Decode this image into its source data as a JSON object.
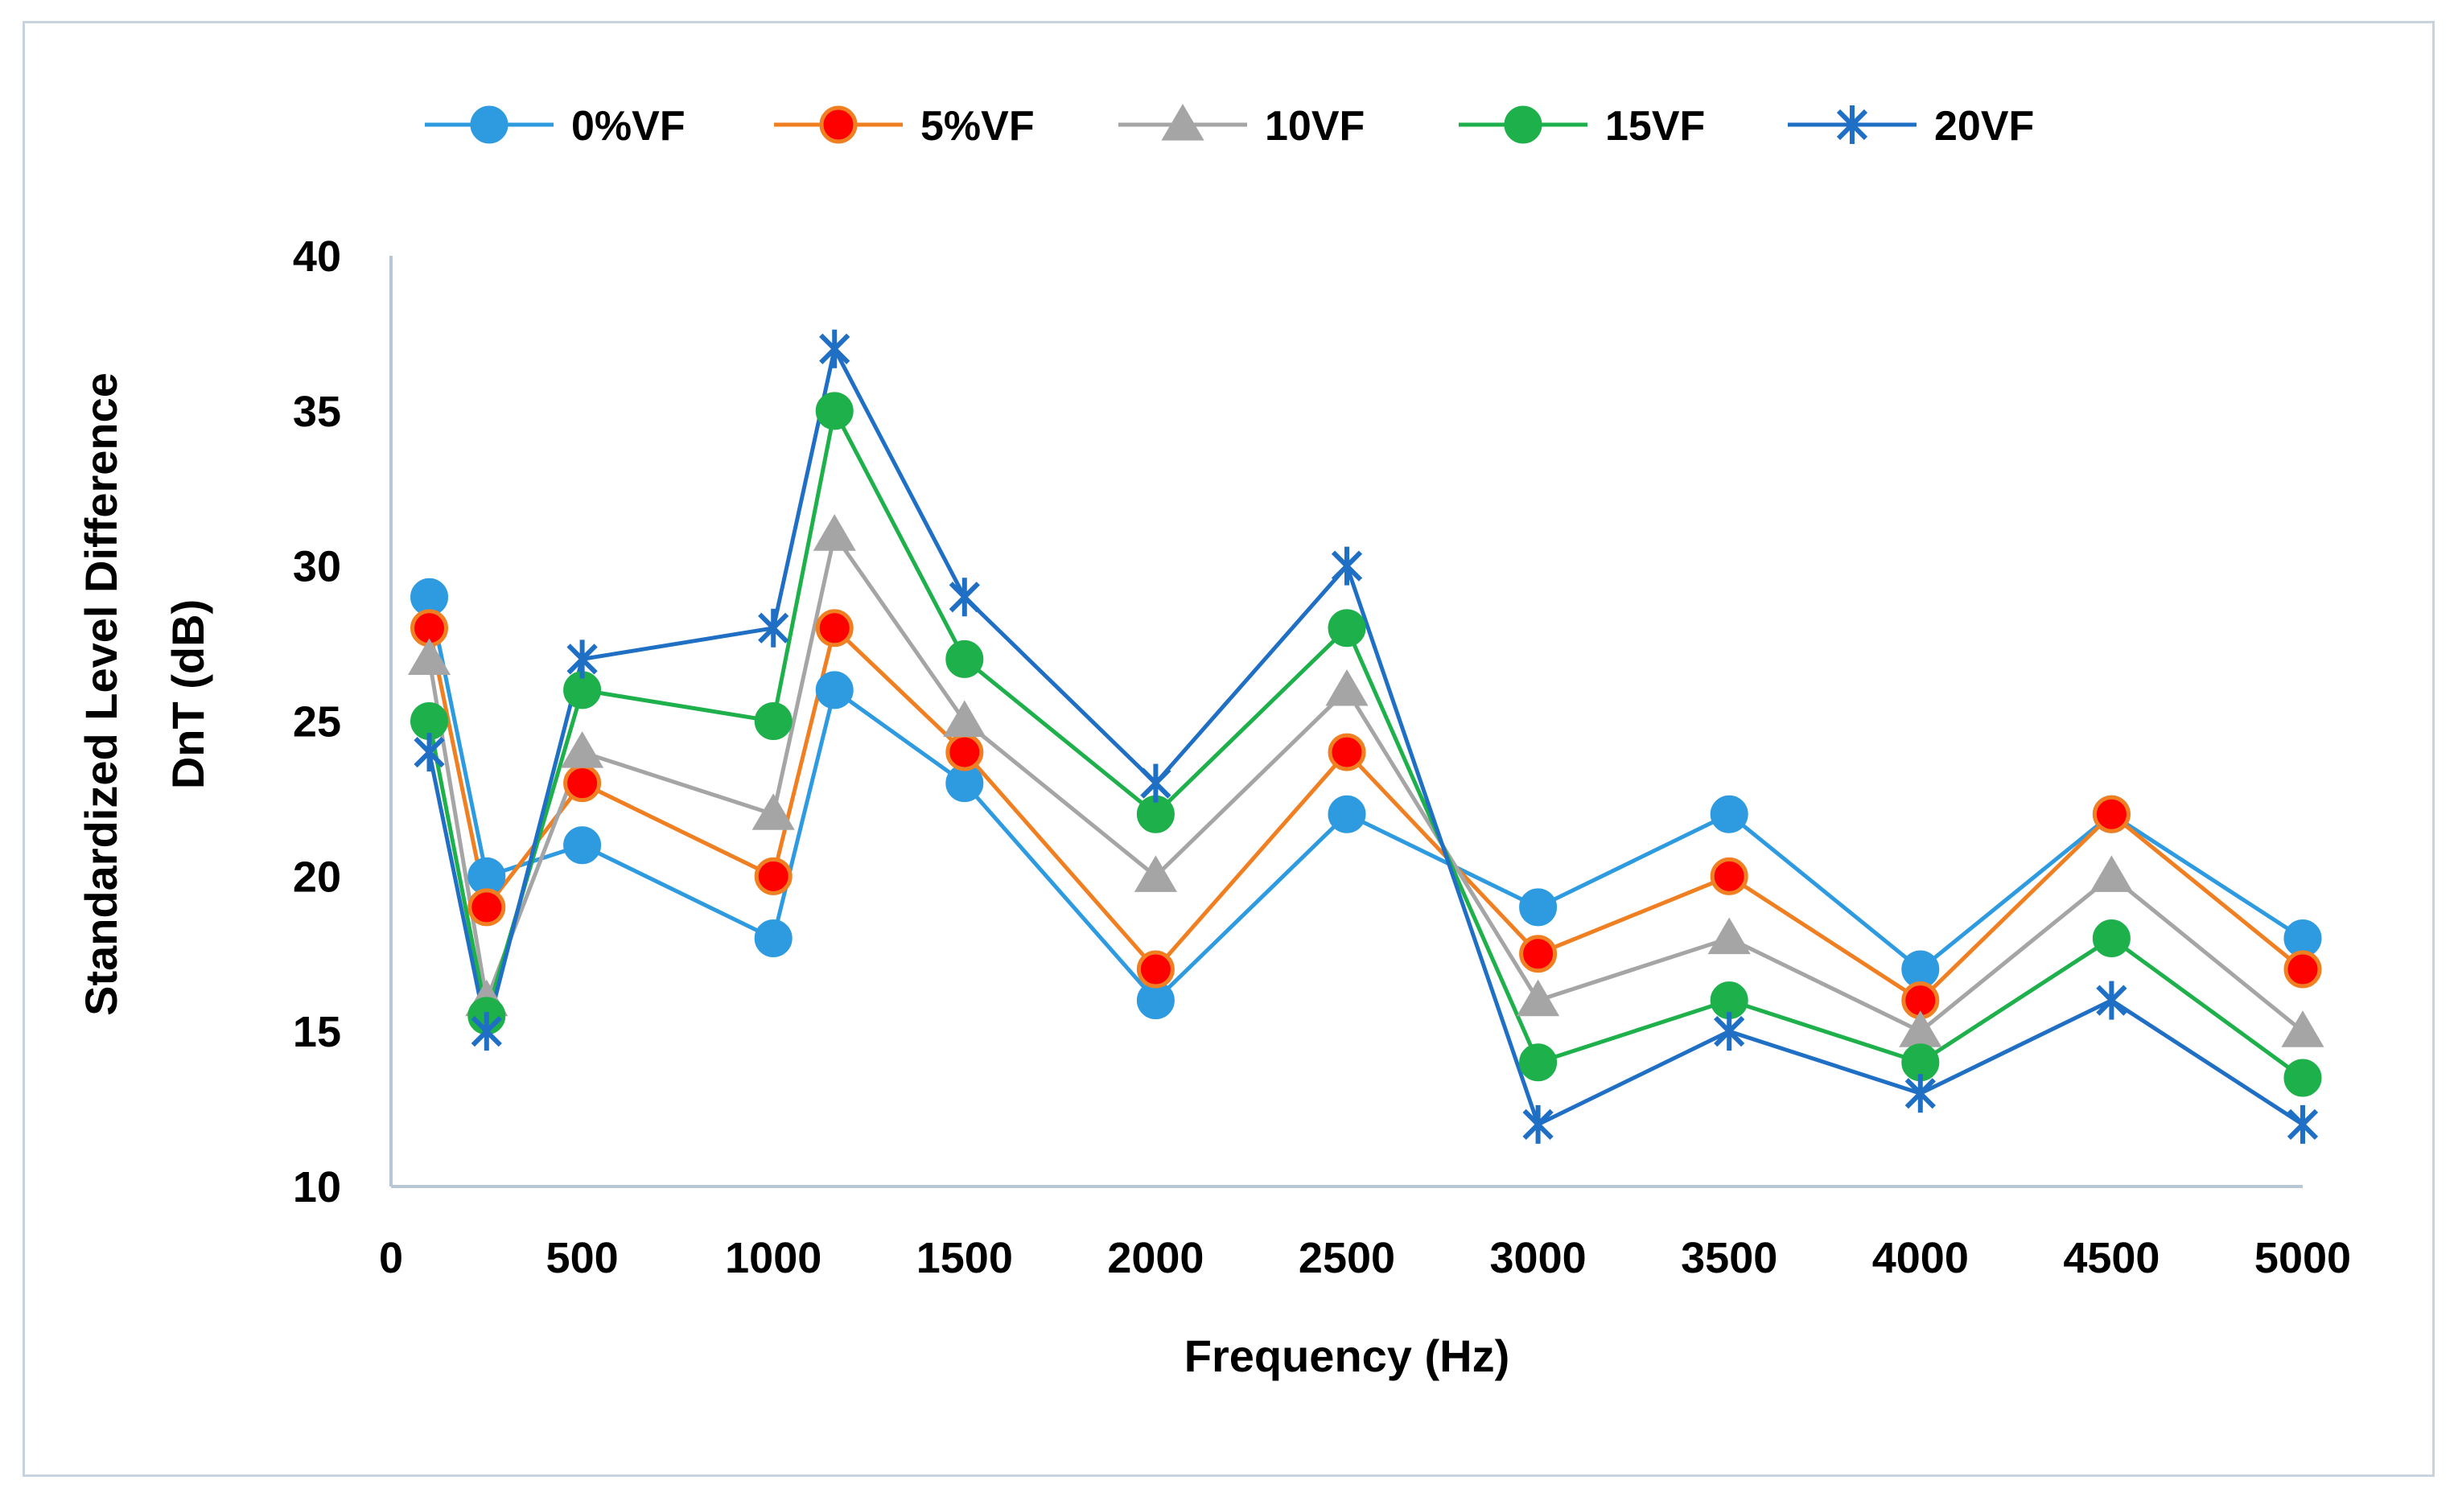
{
  "chart_data": {
    "type": "line",
    "title": "",
    "xlabel": "Frequency (Hz)",
    "ylabel_lines": [
      "Standardized Level Difference",
      "DnT (dB)"
    ],
    "xlim": [
      0,
      5000
    ],
    "ylim": [
      10,
      40
    ],
    "x_ticks": [
      0,
      500,
      1000,
      1500,
      2000,
      2500,
      3000,
      3500,
      4000,
      4500,
      5000
    ],
    "y_ticks": [
      10,
      15,
      20,
      25,
      30,
      35,
      40
    ],
    "grid": false,
    "legend_position": "top",
    "x": [
      100,
      250,
      500,
      1000,
      1160,
      1500,
      2000,
      2500,
      3000,
      3500,
      4000,
      4500,
      5000
    ],
    "series": [
      {
        "name": "0%VF",
        "color": "#2e9be0",
        "marker": "circle",
        "marker_fill": "#2e9be0",
        "marker_stroke": "#2e9be0",
        "values": [
          29,
          20,
          21,
          18,
          26,
          23,
          16,
          22,
          19,
          22,
          17,
          22,
          18
        ]
      },
      {
        "name": "5%VF",
        "color": "#f07f22",
        "marker": "circle",
        "marker_fill": "#ff0000",
        "marker_stroke": "#f07f22",
        "values": [
          28,
          19,
          23,
          20,
          28,
          24,
          17,
          24,
          17.5,
          20,
          16,
          22,
          17
        ]
      },
      {
        "name": "10VF",
        "color": "#a5a5a5",
        "marker": "triangle",
        "marker_fill": "#a5a5a5",
        "marker_stroke": "#a5a5a5",
        "values": [
          27,
          16,
          24,
          22,
          31,
          25,
          20,
          26,
          16,
          18,
          15,
          20,
          15
        ]
      },
      {
        "name": "15VF",
        "color": "#1db04b",
        "marker": "circle",
        "marker_fill": "#1db04b",
        "marker_stroke": "#1db04b",
        "values": [
          25,
          15.5,
          26,
          25,
          35,
          27,
          22,
          28,
          14,
          16,
          14,
          18,
          13.5
        ]
      },
      {
        "name": "20VF",
        "color": "#1f6fc5",
        "marker": "star",
        "marker_fill": "none",
        "marker_stroke": "#1f6fc5",
        "values": [
          24,
          15,
          27,
          28,
          37,
          29,
          23,
          30,
          12,
          15,
          13,
          16,
          12
        ]
      }
    ]
  }
}
